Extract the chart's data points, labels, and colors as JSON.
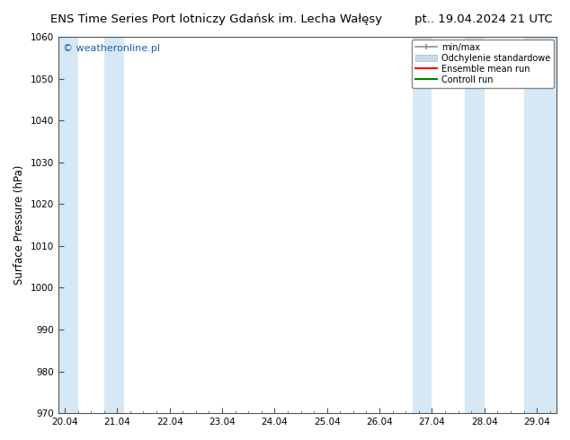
{
  "title_left": "ENS Time Series Port lotniczy Gdańsk im. Lecha Wałęsy",
  "title_right": "pt.. 19.04.2024 21 UTC",
  "ylabel": "Surface Pressure (hPa)",
  "ylim": [
    970,
    1060
  ],
  "yticks": [
    970,
    980,
    990,
    1000,
    1010,
    1020,
    1030,
    1040,
    1050,
    1060
  ],
  "x_labels": [
    "20.04",
    "21.04",
    "22.04",
    "23.04",
    "24.04",
    "25.04",
    "26.04",
    "27.04",
    "28.04",
    "29.04"
  ],
  "x_values": [
    0,
    4,
    8,
    12,
    16,
    20,
    24,
    28,
    32,
    36
  ],
  "xlim": [
    -0.5,
    37.5
  ],
  "shaded_bands": [
    {
      "x_start": -0.5,
      "x_end": 1.0
    },
    {
      "x_start": 3.0,
      "x_end": 4.5
    },
    {
      "x_start": 26.5,
      "x_end": 28.0
    },
    {
      "x_start": 30.5,
      "x_end": 32.0
    },
    {
      "x_start": 35.0,
      "x_end": 37.5
    }
  ],
  "band_color": "#d6e8f5",
  "bg_color": "#ffffff",
  "plot_bg_color": "#ffffff",
  "watermark": "© weatheronline.pl",
  "legend_entries": [
    {
      "label": "min/max"
    },
    {
      "label": "Odchylenie standardowe"
    },
    {
      "label": "Ensemble mean run",
      "color": "red"
    },
    {
      "label": "Controll run",
      "color": "green"
    }
  ],
  "spine_color": "#555555",
  "tick_label_fontsize": 7.5,
  "axis_label_fontsize": 8.5,
  "title_fontsize": 9.5
}
